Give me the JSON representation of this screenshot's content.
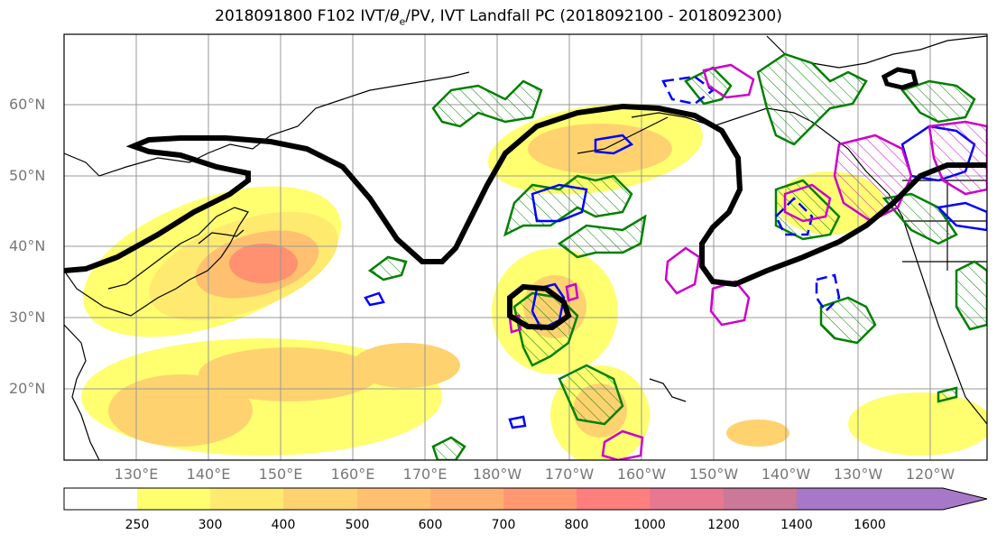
{
  "title_prefix": "2018091800 F102 IVT/",
  "title_theta": "θ",
  "title_sub": "e",
  "title_suffix": "/PV, IVT Landfall PC (2018092100 - 2018092300)",
  "lat_labels": [
    "60°N",
    "50°N",
    "40°N",
    "30°N",
    "20°N"
  ],
  "lon_labels": [
    "130°E",
    "140°E",
    "150°E",
    "160°E",
    "170°E",
    "180°W",
    "170°W",
    "160°W",
    "150°W",
    "140°W",
    "130°W",
    "120°W"
  ],
  "colorbar": {
    "ticks": [
      "250",
      "300",
      "400",
      "500",
      "600",
      "700",
      "800",
      "1000",
      "1200",
      "1400",
      "1600"
    ],
    "colors": [
      "#ffffff",
      "#ffff70",
      "#ffea70",
      "#ffd270",
      "#ffc070",
      "#ffb070",
      "#ff9870",
      "#ff7f7f",
      "#e87890",
      "#cc7898",
      "#a878c8"
    ]
  },
  "colors": {
    "pv_contour": "#000000",
    "theta_e_positive": "#cc00cc",
    "theta_e_negative": "#0000ff",
    "ivt_outline": "#008000"
  }
}
